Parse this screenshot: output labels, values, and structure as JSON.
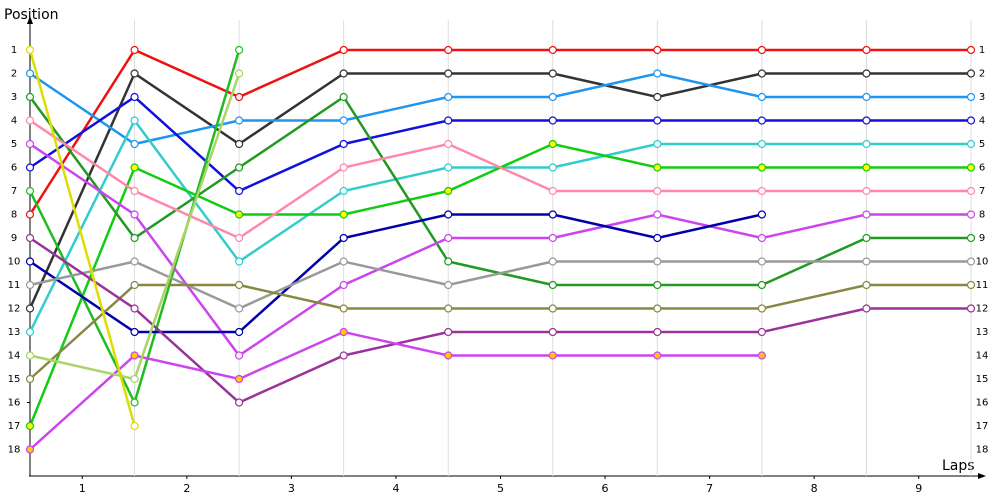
{
  "chart_data": {
    "type": "line",
    "y_label": "Position",
    "x_label": "Laps",
    "x": [
      0,
      1,
      2,
      3,
      4,
      5,
      6,
      7,
      8,
      9
    ],
    "xlim": [
      0,
      9
    ],
    "xticks": [
      {
        "value": 0.5,
        "label": "1"
      },
      {
        "value": 1.5,
        "label": "2"
      },
      {
        "value": 2.5,
        "label": "3"
      },
      {
        "value": 3.5,
        "label": "4"
      },
      {
        "value": 4.5,
        "label": "5"
      },
      {
        "value": 5.5,
        "label": "6"
      },
      {
        "value": 6.5,
        "label": "7"
      },
      {
        "value": 7.5,
        "label": "8"
      },
      {
        "value": 8.5,
        "label": "9"
      }
    ],
    "ylim": [
      19,
      0
    ],
    "yticks": [
      1,
      2,
      3,
      4,
      5,
      6,
      7,
      8,
      9,
      10,
      11,
      12,
      13,
      14,
      15,
      16,
      17,
      18
    ],
    "y_inverted": true,
    "grid": true,
    "series": [
      {
        "color": "#ee1111",
        "marker_color": "#ffffff",
        "values": [
          8,
          1,
          3,
          1,
          1,
          1,
          1,
          1,
          1,
          1
        ]
      },
      {
        "color": "#333333",
        "marker_color": "#ffffff",
        "values": [
          12,
          2,
          5,
          2,
          2,
          2,
          3,
          2,
          2,
          2
        ]
      },
      {
        "color": "#1e96f0",
        "marker_color": "#ffffff",
        "values": [
          2,
          5,
          4,
          4,
          3,
          3,
          2,
          3,
          3,
          3
        ]
      },
      {
        "color": "#1111dd",
        "marker_color": "#ffffff",
        "values": [
          6,
          3,
          7,
          5,
          4,
          4,
          4,
          4,
          4,
          4
        ]
      },
      {
        "color": "#33cccc",
        "marker_color": "#ffffff",
        "values": [
          13,
          4,
          10,
          7,
          6,
          6,
          5,
          5,
          5,
          5
        ]
      },
      {
        "color": "#11cc11",
        "marker_color": "#ffff00",
        "values": [
          17,
          6,
          8,
          8,
          7,
          5,
          6,
          6,
          6,
          6
        ]
      },
      {
        "color": "#229922",
        "marker_color": "#ffffff",
        "values": [
          3,
          9,
          6,
          3,
          10,
          11,
          11,
          11,
          9,
          9
        ]
      },
      {
        "color": "#22bb22",
        "marker_color": "#ffffff",
        "values": [
          7,
          16,
          1,
          null,
          null,
          null,
          null,
          null,
          null,
          null
        ]
      },
      {
        "color": "#ff88aa",
        "marker_color": "#ffffff",
        "values": [
          4,
          7,
          9,
          6,
          5,
          7,
          7,
          7,
          7,
          7
        ]
      },
      {
        "color": "#cc44ee",
        "marker_color": "#ffffff",
        "values": [
          5,
          8,
          14,
          11,
          9,
          9,
          8,
          9,
          8,
          8
        ]
      },
      {
        "color": "#0000aa",
        "marker_color": "#ffffff",
        "values": [
          10,
          13,
          13,
          9,
          8,
          8,
          9,
          8,
          null,
          null
        ]
      },
      {
        "color": "#999999",
        "marker_color": "#ffffff",
        "values": [
          11,
          10,
          12,
          10,
          11,
          10,
          10,
          10,
          10,
          10
        ]
      },
      {
        "color": "#888844",
        "marker_color": "#ffffff",
        "values": [
          15,
          11,
          11,
          12,
          12,
          12,
          12,
          12,
          11,
          11
        ]
      },
      {
        "color": "#993399",
        "marker_color": "#ffffff",
        "values": [
          9,
          12,
          16,
          14,
          13,
          13,
          13,
          13,
          12,
          12
        ]
      },
      {
        "color": "#cc44ee",
        "marker_color": "#ffcc00",
        "values": [
          18,
          14,
          15,
          13,
          14,
          14,
          14,
          14,
          null,
          null
        ]
      },
      {
        "color": "#aad466",
        "marker_color": "#ffffff",
        "values": [
          14,
          15,
          2,
          null,
          null,
          null,
          null,
          null,
          null,
          null
        ]
      },
      {
        "color": "#dddd00",
        "marker_color": "#ffffff",
        "values": [
          1,
          17,
          null,
          null,
          null,
          null,
          null,
          null,
          null,
          null
        ]
      }
    ]
  }
}
